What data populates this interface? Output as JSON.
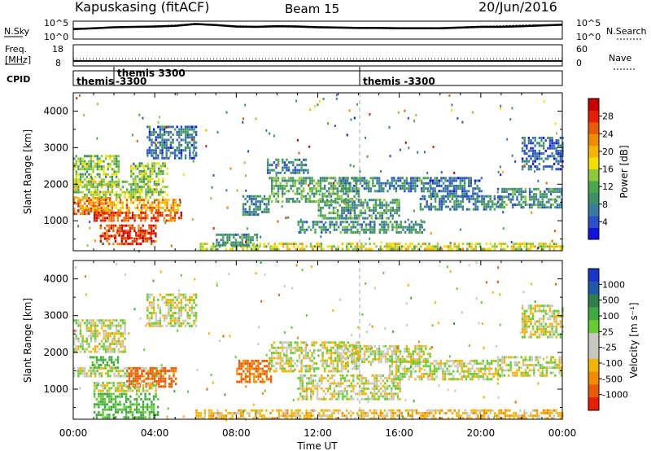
{
  "header": {
    "station": "Kapuskasing (fitACF)",
    "beam": "Beam 15",
    "date": "20/Jun/2016"
  },
  "noise_panel": {
    "left_label": "N.Sky",
    "right_label": "N.Search",
    "ticks": [
      "10^5",
      "10^0"
    ]
  },
  "freq_panel": {
    "left_label_1": "Freq.",
    "left_label_2": "[MHz]",
    "left_ticks": [
      "18",
      "8"
    ],
    "right_ticks": [
      "60",
      "0"
    ],
    "right_label": "Nave"
  },
  "cpid_panel": {
    "label": "CPID",
    "segments": [
      {
        "text_1": "themis",
        "text_2": ""
      },
      {
        "text_1": "themis 3300",
        "text_2": "-3300"
      },
      {
        "text_1": "themis -3300",
        "text_2": ""
      }
    ]
  },
  "x_axis": {
    "label": "Time UT",
    "ticks": [
      "00:00",
      "04:00",
      "08:00",
      "12:00",
      "16:00",
      "20:00",
      "00:00"
    ]
  },
  "chart_data": [
    {
      "type": "line",
      "name": "noise",
      "ylim_log10": [
        0,
        5
      ],
      "x_hours": [
        0,
        1,
        2,
        3,
        4,
        5,
        6,
        7,
        8,
        9,
        10,
        11,
        12,
        13,
        14,
        15,
        16,
        17,
        18,
        19,
        20,
        21,
        22,
        23,
        24
      ],
      "sky_log10": [
        2.8,
        3.0,
        3.3,
        3.4,
        3.5,
        3.7,
        4.2,
        3.9,
        3.5,
        3.4,
        3.6,
        3.5,
        3.3,
        3.2,
        3.1,
        3.1,
        3.0,
        3.0,
        3.0,
        3.2,
        3.4,
        3.4,
        3.6,
        3.8,
        4.0
      ],
      "search_log10": [
        3.0,
        3.1,
        3.4,
        3.5,
        3.7,
        3.9,
        4.4,
        4.0,
        3.7,
        3.6,
        3.8,
        3.7,
        3.5,
        3.4,
        3.3,
        3.3,
        3.2,
        3.2,
        3.2,
        3.4,
        3.6,
        3.7,
        3.9,
        4.0,
        4.1
      ]
    },
    {
      "type": "line",
      "name": "frequency",
      "ylim_freq": [
        8,
        18
      ],
      "ylim_nave": [
        0,
        60
      ],
      "freq_levels": [
        10.4,
        11.4
      ],
      "nave_level": 14
    },
    {
      "type": "heatmap",
      "name": "power",
      "ylabel": "Slant Range [km]",
      "ylim": [
        180,
        4500
      ],
      "xlim_hours": [
        0,
        24
      ],
      "y_ticks": [
        1000,
        2000,
        3000,
        4000
      ],
      "colorbar": {
        "label": "Power [dB]",
        "range": [
          0,
          32
        ],
        "ticks": [
          4,
          8,
          12,
          16,
          20,
          24,
          28
        ],
        "colors": [
          "#1212dc",
          "#2a4fc8",
          "#3a7aa0",
          "#3d8f6a",
          "#4aa84a",
          "#8cc83c",
          "#f0e000",
          "#f5b400",
          "#f28a00",
          "#ec5a00",
          "#e42000",
          "#c80000"
        ]
      },
      "regions": [
        {
          "t0": 0.0,
          "t1": 1.8,
          "r0": 1180,
          "r1": 1650,
          "value": 24
        },
        {
          "t0": 0.2,
          "t1": 5.2,
          "r0": 1300,
          "r1": 1600,
          "value": 22
        },
        {
          "t0": 1.0,
          "t1": 5.3,
          "r0": 1000,
          "r1": 1250,
          "value": 26
        },
        {
          "t0": 1.3,
          "t1": 4.0,
          "r0": 350,
          "r1": 900,
          "value": 27
        },
        {
          "t0": 2.0,
          "t1": 3.8,
          "r0": 500,
          "r1": 700,
          "value": 29
        },
        {
          "t0": 0.0,
          "t1": 2.2,
          "r0": 2000,
          "r1": 2800,
          "value": 14
        },
        {
          "t0": 0.0,
          "t1": 3.2,
          "r0": 1650,
          "r1": 2100,
          "value": 16
        },
        {
          "t0": 2.8,
          "t1": 4.6,
          "r0": 1650,
          "r1": 2600,
          "value": 14
        },
        {
          "t0": 3.6,
          "t1": 6.0,
          "r0": 2700,
          "r1": 3600,
          "value": 7
        },
        {
          "t0": 6.0,
          "t1": 24.0,
          "r0": 200,
          "r1": 400,
          "value": 17
        },
        {
          "t0": 7.0,
          "t1": 9.0,
          "r0": 350,
          "r1": 650,
          "value": 9
        },
        {
          "t0": 8.3,
          "t1": 9.6,
          "r0": 1200,
          "r1": 1700,
          "value": 8
        },
        {
          "t0": 9.6,
          "t1": 14.0,
          "r0": 1500,
          "r1": 2200,
          "value": 11
        },
        {
          "t0": 9.5,
          "t1": 11.5,
          "r0": 2300,
          "r1": 2700,
          "value": 8
        },
        {
          "t0": 12.0,
          "t1": 16.0,
          "r0": 1100,
          "r1": 1600,
          "value": 10
        },
        {
          "t0": 11.0,
          "t1": 14.8,
          "r0": 700,
          "r1": 1000,
          "value": 9
        },
        {
          "t0": 13.0,
          "t1": 17.5,
          "r0": 1800,
          "r1": 2200,
          "value": 8
        },
        {
          "t0": 15.0,
          "t1": 17.2,
          "r0": 700,
          "r1": 1000,
          "value": 10
        },
        {
          "t0": 17.0,
          "t1": 21.0,
          "r0": 1300,
          "r1": 1700,
          "value": 8
        },
        {
          "t0": 17.5,
          "t1": 20.0,
          "r0": 1700,
          "r1": 2200,
          "value": 7
        },
        {
          "t0": 20.8,
          "t1": 24.0,
          "r0": 1400,
          "r1": 1900,
          "value": 9
        },
        {
          "t0": 22.0,
          "t1": 24.0,
          "r0": 2400,
          "r1": 3300,
          "value": 6
        }
      ]
    },
    {
      "type": "heatmap",
      "name": "velocity",
      "ylabel": "Slant Range [km]",
      "ylim": [
        180,
        4500
      ],
      "xlim_hours": [
        0,
        24
      ],
      "y_ticks": [
        1000,
        2000,
        3000,
        4000
      ],
      "colorbar": {
        "label": "Velocity [m s⁻¹]",
        "tick_labels": [
          "1000",
          "500",
          "100",
          "25",
          "-25",
          "-100",
          "-500",
          "-1000"
        ],
        "colors": [
          "#1a36c8",
          "#1e5aa8",
          "#2f7f4c",
          "#3faa3f",
          "#66cc33",
          "#c8c8c0",
          "#c8c8c0",
          "#f5b400",
          "#f28a00",
          "#ec5a00",
          "#e42000"
        ]
      },
      "regions": [
        {
          "t0": 0.0,
          "t1": 2.5,
          "r0": 2000,
          "r1": 2900,
          "value": 0
        },
        {
          "t0": 0.0,
          "t1": 4.5,
          "r0": 1350,
          "r1": 1600,
          "value": 0
        },
        {
          "t0": 0.8,
          "t1": 2.2,
          "r0": 1550,
          "r1": 1900,
          "value": 140
        },
        {
          "t0": 2.6,
          "t1": 5.0,
          "r0": 1050,
          "r1": 1600,
          "value": -300
        },
        {
          "t0": 1.0,
          "t1": 4.2,
          "r0": 250,
          "r1": 900,
          "value": 120
        },
        {
          "t0": 1.0,
          "t1": 4.2,
          "r0": 950,
          "r1": 1200,
          "value": 0
        },
        {
          "t0": 3.6,
          "t1": 6.0,
          "r0": 2700,
          "r1": 3600,
          "value": 0
        },
        {
          "t0": 8.0,
          "t1": 9.7,
          "r0": 1200,
          "r1": 1800,
          "value": -250
        },
        {
          "t0": 6.0,
          "t1": 24.0,
          "r0": 200,
          "r1": 450,
          "value": -60
        },
        {
          "t0": 9.6,
          "t1": 14.0,
          "r0": 1500,
          "r1": 2300,
          "value": 0
        },
        {
          "t0": 11.0,
          "t1": 16.0,
          "r0": 700,
          "r1": 1400,
          "value": 0
        },
        {
          "t0": 13.0,
          "t1": 17.5,
          "r0": 1750,
          "r1": 2200,
          "value": 0
        },
        {
          "t0": 15.5,
          "t1": 21.0,
          "r0": 1300,
          "r1": 1800,
          "value": 0
        },
        {
          "t0": 20.8,
          "t1": 24.0,
          "r0": 1400,
          "r1": 1900,
          "value": 0
        },
        {
          "t0": 22.0,
          "t1": 24.0,
          "r0": 2400,
          "r1": 3300,
          "value": 0
        }
      ]
    }
  ]
}
